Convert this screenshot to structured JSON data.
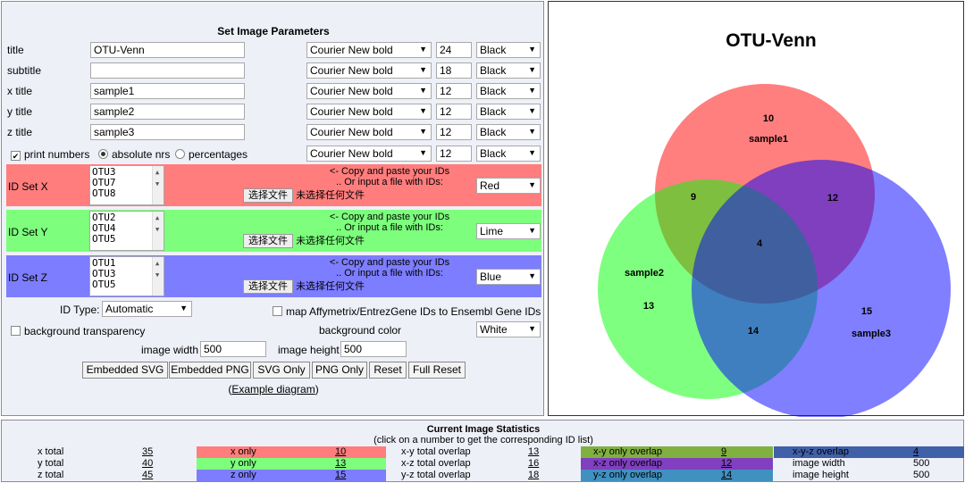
{
  "form": {
    "heading": "Set Image Parameters",
    "rows": [
      {
        "label": "title",
        "value": "OTU-Venn",
        "font": "Courier New bold",
        "size": "24",
        "color": "Black"
      },
      {
        "label": "subtitle",
        "value": "",
        "font": "Courier New bold",
        "size": "18",
        "color": "Black"
      },
      {
        "label": "x title",
        "value": "sample1",
        "font": "Courier New bold",
        "size": "12",
        "color": "Black"
      },
      {
        "label": "y title",
        "value": "sample2",
        "font": "Courier New bold",
        "size": "12",
        "color": "Black"
      },
      {
        "label": "z title",
        "value": "sample3",
        "font": "Courier New bold",
        "size": "12",
        "color": "Black"
      }
    ],
    "print_numbers": "print numbers",
    "absolute_nrs": "absolute nrs",
    "percentages": "percentages",
    "numbers_font": "Courier New bold",
    "numbers_size": "12",
    "numbers_color": "Black",
    "sets": [
      {
        "label": "ID Set X",
        "ids": [
          "OTU3",
          "OTU7",
          "OTU8"
        ],
        "color": "Red",
        "bg": "#ff7d7d"
      },
      {
        "label": "ID Set Y",
        "ids": [
          "OTU2",
          "OTU4",
          "OTU5"
        ],
        "color": "Lime",
        "bg": "#7dff7d"
      },
      {
        "label": "ID Set Z",
        "ids": [
          "OTU1",
          "OTU3",
          "OTU5"
        ],
        "color": "Blue",
        "bg": "#7d7dff"
      }
    ],
    "copy_paste_text": "<- Copy and paste your IDs",
    "or_input_text": ".. Or input a file with IDs:",
    "choose_file": "选择文件",
    "no_file": "未选择任何文件",
    "id_type_label": "ID Type:",
    "id_type_value": "Automatic",
    "map_label": "map Affymetrix/EntrezGene IDs to Ensembl Gene IDs",
    "bg_transparency": "background transparency",
    "bg_color_label": "background color",
    "bg_color_value": "White",
    "image_width_label": "image width",
    "image_width_value": "500",
    "image_height_label": "image height",
    "image_height_value": "500",
    "buttons": [
      "Embedded SVG",
      "Embedded PNG",
      "SVG Only",
      "PNG Only",
      "Reset",
      "Full Reset"
    ],
    "example_open": "(",
    "example_link": "Example diagram",
    "example_close": ")"
  },
  "venn": {
    "title": "OTU-Venn",
    "labels": {
      "x": "sample1",
      "y": "sample2",
      "z": "sample3"
    },
    "counts": {
      "x_only": "10",
      "y_only": "13",
      "z_only": "15",
      "xy": "9",
      "xz": "12",
      "yz": "14",
      "xyz": "4"
    },
    "colors": {
      "x": "#ff0000",
      "y": "#00ff00",
      "z": "#0000ff"
    }
  },
  "stats": {
    "title": "Current Image Statistics",
    "subtitle": "(click on a number to get the corresponding ID list)",
    "totals": [
      {
        "label": "x total",
        "value": "35"
      },
      {
        "label": "y total",
        "value": "40"
      },
      {
        "label": "z total",
        "value": "45"
      }
    ],
    "only": [
      {
        "label": "x only",
        "value": "10",
        "bg": "#ff7d7d"
      },
      {
        "label": "y only",
        "value": "13",
        "bg": "#7dff7d"
      },
      {
        "label": "z only",
        "value": "15",
        "bg": "#7d7dff"
      }
    ],
    "overlap_totals": [
      {
        "label": "x-y total overlap",
        "value": "13"
      },
      {
        "label": "x-z total overlap",
        "value": "16"
      },
      {
        "label": "y-z total overlap",
        "value": "18"
      }
    ],
    "only_overlaps": [
      {
        "label": "x-y only overlap",
        "value": "9",
        "bg": "#80b040"
      },
      {
        "label": "x-z only overlap",
        "value": "12",
        "bg": "#8040c0"
      },
      {
        "label": "y-z only overlap",
        "value": "14",
        "bg": "#4090c0"
      }
    ],
    "misc": [
      {
        "label": "x-y-z overlap",
        "value": "4",
        "bg": "#4060a8"
      },
      {
        "label": "image width",
        "value": "500",
        "bg": ""
      },
      {
        "label": "image height",
        "value": "500",
        "bg": ""
      }
    ]
  }
}
